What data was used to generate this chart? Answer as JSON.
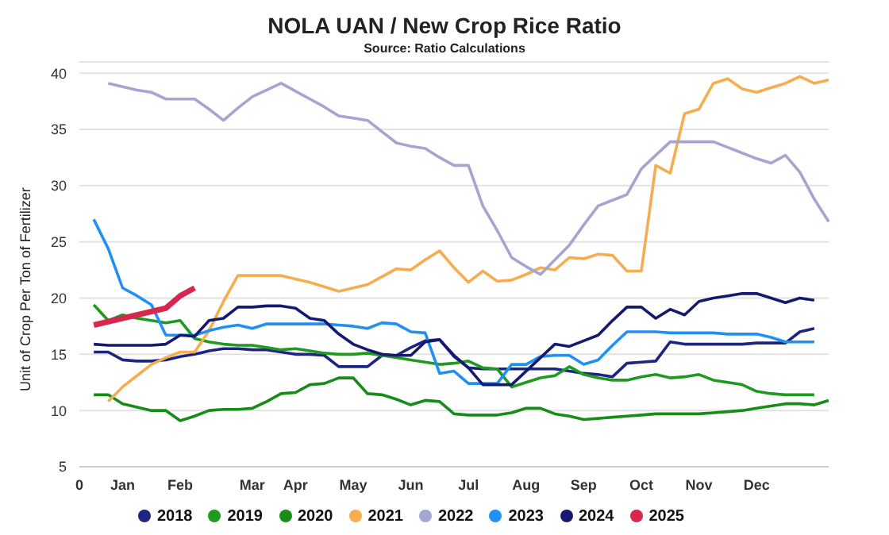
{
  "chart_data": {
    "type": "line",
    "title": "NOLA UAN / New Crop Rice Ratio",
    "subtitle": "Source: Ratio Calculations",
    "ylabel": "Unit of Crop Per Ton of Fertilizer",
    "categories": [
      "0",
      null,
      null,
      "Jan",
      null,
      null,
      null,
      "Feb",
      null,
      null,
      null,
      null,
      "Mar",
      null,
      null,
      "Apr",
      null,
      null,
      null,
      "May",
      null,
      null,
      null,
      "Jun",
      null,
      null,
      null,
      "Jul",
      null,
      null,
      null,
      "Aug",
      null,
      null,
      null,
      "Sep",
      null,
      null,
      null,
      "Oct",
      null,
      null,
      null,
      "Nov",
      null,
      null,
      null,
      "Dec",
      null,
      null,
      null,
      null,
      null
    ],
    "ylim": [
      5,
      41
    ],
    "yticks": [
      5,
      10,
      15,
      20,
      25,
      30,
      35,
      40
    ],
    "grid": "y",
    "legend": "bottom",
    "marker": "none",
    "line_style": "solid",
    "series": [
      {
        "name": "2018",
        "color": "#1c2580",
        "values": [
          null,
          15.2,
          15.2,
          14.5,
          14.4,
          14.4,
          14.5,
          14.8,
          15.0,
          15.3,
          15.5,
          15.5,
          15.4,
          15.4,
          15.2,
          15.0,
          15.0,
          14.9,
          13.9,
          13.9,
          13.9,
          14.9,
          14.9,
          15.6,
          16.2,
          16.3,
          14.8,
          13.8,
          13.7,
          13.7,
          13.7,
          13.7,
          13.7,
          13.7,
          13.5,
          13.3,
          13.2,
          13.0,
          14.2,
          14.3,
          14.4,
          16.1,
          15.9,
          15.9,
          15.9,
          15.9,
          15.9,
          16.0,
          16.0,
          16.0,
          17.0,
          17.3,
          null
        ]
      },
      {
        "name": "2019",
        "color": "#1e9a1e",
        "values": [
          null,
          19.4,
          18.0,
          18.5,
          18.2,
          18.0,
          17.8,
          18.0,
          16.4,
          16.1,
          15.9,
          15.8,
          15.8,
          15.6,
          15.4,
          15.5,
          15.3,
          15.1,
          15.0,
          15.0,
          15.1,
          14.9,
          14.7,
          14.5,
          14.3,
          14.1,
          14.2,
          14.4,
          13.8,
          13.7,
          12.1,
          12.5,
          12.9,
          13.1,
          13.9,
          13.2,
          12.9,
          12.7,
          12.7,
          13.0,
          13.2,
          12.9,
          13.0,
          13.2,
          12.7,
          12.5,
          12.3,
          11.7,
          11.5,
          11.4,
          11.4,
          11.4,
          null
        ]
      },
      {
        "name": "2020",
        "color": "#178c17",
        "values": [
          null,
          11.4,
          11.4,
          10.6,
          10.3,
          10.0,
          10.0,
          9.1,
          9.5,
          10.0,
          10.1,
          10.1,
          10.2,
          10.8,
          11.5,
          11.6,
          12.3,
          12.4,
          12.9,
          12.9,
          11.5,
          11.4,
          11.0,
          10.5,
          10.9,
          10.8,
          9.7,
          9.6,
          9.6,
          9.6,
          9.8,
          10.2,
          10.2,
          9.7,
          9.5,
          9.2,
          9.3,
          9.4,
          9.5,
          9.6,
          9.7,
          9.7,
          9.7,
          9.7,
          9.8,
          9.9,
          10.0,
          10.2,
          10.4,
          10.6,
          10.6,
          10.5,
          10.9
        ]
      },
      {
        "name": "2021",
        "color": "#f6ad4f",
        "values": [
          null,
          null,
          10.8,
          12.1,
          13.1,
          14.1,
          14.7,
          15.2,
          15.2,
          17.1,
          19.7,
          22.0,
          22.0,
          22.0,
          22.0,
          21.7,
          21.4,
          21.0,
          20.6,
          20.9,
          21.2,
          21.9,
          22.6,
          22.5,
          23.4,
          24.2,
          22.7,
          21.4,
          22.4,
          21.5,
          21.6,
          22.1,
          22.7,
          22.5,
          23.6,
          23.5,
          23.9,
          23.8,
          22.4,
          22.4,
          31.8,
          31.1,
          36.4,
          36.8,
          39.1,
          39.5,
          38.6,
          38.3,
          38.7,
          39.1,
          39.7,
          39.1,
          39.4
        ]
      },
      {
        "name": "2022",
        "color": "#a3a6d2",
        "values": [
          null,
          null,
          39.1,
          38.8,
          38.5,
          38.3,
          37.7,
          37.7,
          37.7,
          36.8,
          35.8,
          36.9,
          37.9,
          38.5,
          39.1,
          38.4,
          37.7,
          37.0,
          36.2,
          36.0,
          35.8,
          34.8,
          33.8,
          33.5,
          33.3,
          32.5,
          31.8,
          31.8,
          28.2,
          26.0,
          23.6,
          22.8,
          22.1,
          23.4,
          24.7,
          26.5,
          28.2,
          28.7,
          29.2,
          31.5,
          32.7,
          33.9,
          33.9,
          33.9,
          33.9,
          33.4,
          32.9,
          32.4,
          32.0,
          32.7,
          31.2,
          28.8,
          26.8
        ]
      },
      {
        "name": "2023",
        "color": "#2090f5",
        "values": [
          null,
          27.0,
          24.4,
          20.9,
          20.2,
          19.4,
          16.7,
          16.7,
          16.7,
          17.1,
          17.4,
          17.6,
          17.3,
          17.7,
          17.7,
          17.7,
          17.7,
          17.7,
          17.6,
          17.5,
          17.3,
          17.8,
          17.7,
          17.0,
          16.9,
          13.3,
          13.5,
          12.4,
          12.4,
          12.4,
          14.1,
          14.1,
          14.8,
          14.9,
          14.9,
          14.1,
          14.5,
          15.8,
          17.0,
          17.0,
          17.0,
          16.9,
          16.9,
          16.9,
          16.9,
          16.8,
          16.8,
          16.8,
          16.5,
          16.1,
          16.1,
          16.1,
          null
        ]
      },
      {
        "name": "2024",
        "color": "#141a70",
        "values": [
          null,
          15.9,
          15.8,
          15.8,
          15.8,
          15.8,
          15.9,
          16.7,
          16.6,
          18.0,
          18.2,
          19.2,
          19.2,
          19.3,
          19.3,
          19.1,
          18.2,
          18.0,
          16.8,
          15.9,
          15.4,
          15.0,
          14.9,
          14.9,
          16.1,
          16.3,
          14.9,
          13.8,
          12.3,
          12.3,
          12.3,
          13.5,
          14.7,
          15.9,
          15.7,
          16.2,
          16.7,
          18.0,
          19.2,
          19.2,
          18.2,
          19.0,
          18.5,
          19.7,
          20.0,
          20.2,
          20.4,
          20.4,
          20.0,
          19.6,
          20.0,
          19.8,
          null
        ]
      },
      {
        "name": "2025",
        "color": "#d6274f",
        "values": [
          null,
          17.6,
          17.9,
          18.2,
          18.5,
          18.8,
          19.1,
          20.2,
          20.9,
          null,
          null,
          null,
          null,
          null,
          null,
          null,
          null,
          null,
          null,
          null,
          null,
          null,
          null,
          null,
          null,
          null,
          null,
          null,
          null,
          null,
          null,
          null,
          null,
          null,
          null,
          null,
          null,
          null,
          null,
          null,
          null,
          null,
          null,
          null,
          null,
          null,
          null,
          null,
          null,
          null,
          null,
          null,
          null
        ]
      }
    ]
  }
}
